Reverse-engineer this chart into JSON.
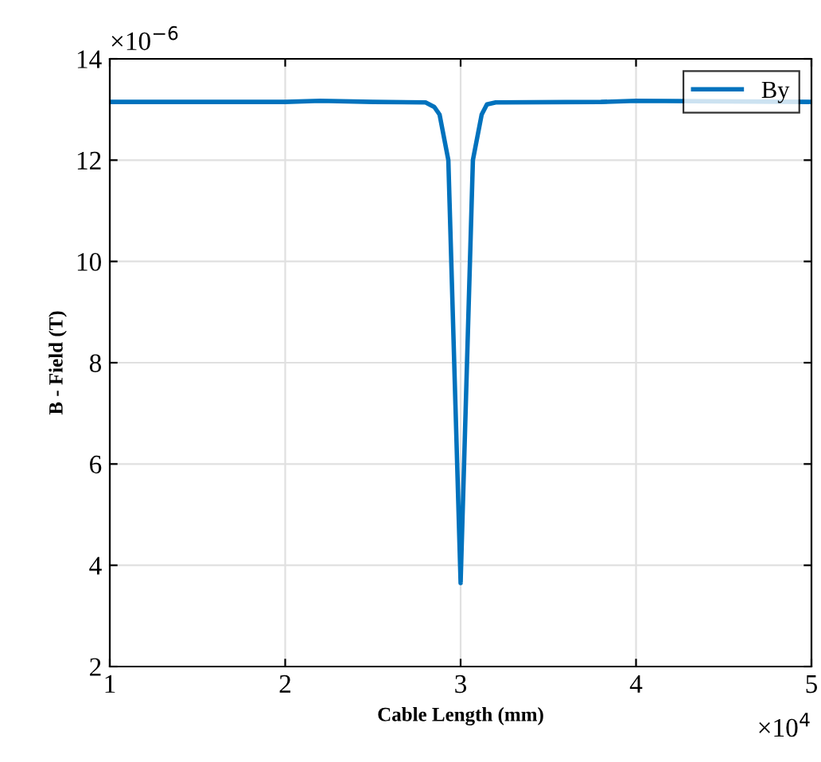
{
  "chart_data": {
    "type": "line",
    "xlabel": "Cable Length (mm)",
    "ylabel": "B - Field (T)",
    "x": [
      1.0,
      2.0,
      2.2,
      2.5,
      2.8,
      2.85,
      2.88,
      2.93,
      3.0,
      3.07,
      3.12,
      3.15,
      3.2,
      3.8,
      4.0,
      5.0
    ],
    "series": [
      {
        "name": "By",
        "color": "#0072bd",
        "values": [
          13.15,
          13.15,
          13.17,
          13.15,
          13.14,
          13.05,
          12.9,
          12.0,
          3.65,
          12.0,
          12.9,
          13.1,
          13.14,
          13.15,
          13.17,
          13.15
        ]
      }
    ],
    "xlim": [
      1,
      5
    ],
    "xticks": [
      1,
      2,
      3,
      4,
      5
    ],
    "ylim": [
      2,
      14
    ],
    "yticks": [
      2,
      4,
      6,
      8,
      10,
      12,
      14
    ],
    "grid": true,
    "legend": "top right",
    "marker": "none",
    "line_style": "solid",
    "annotations": [
      "×10$^{4}$",
      "×10$^{−6}$"
    ]
  }
}
